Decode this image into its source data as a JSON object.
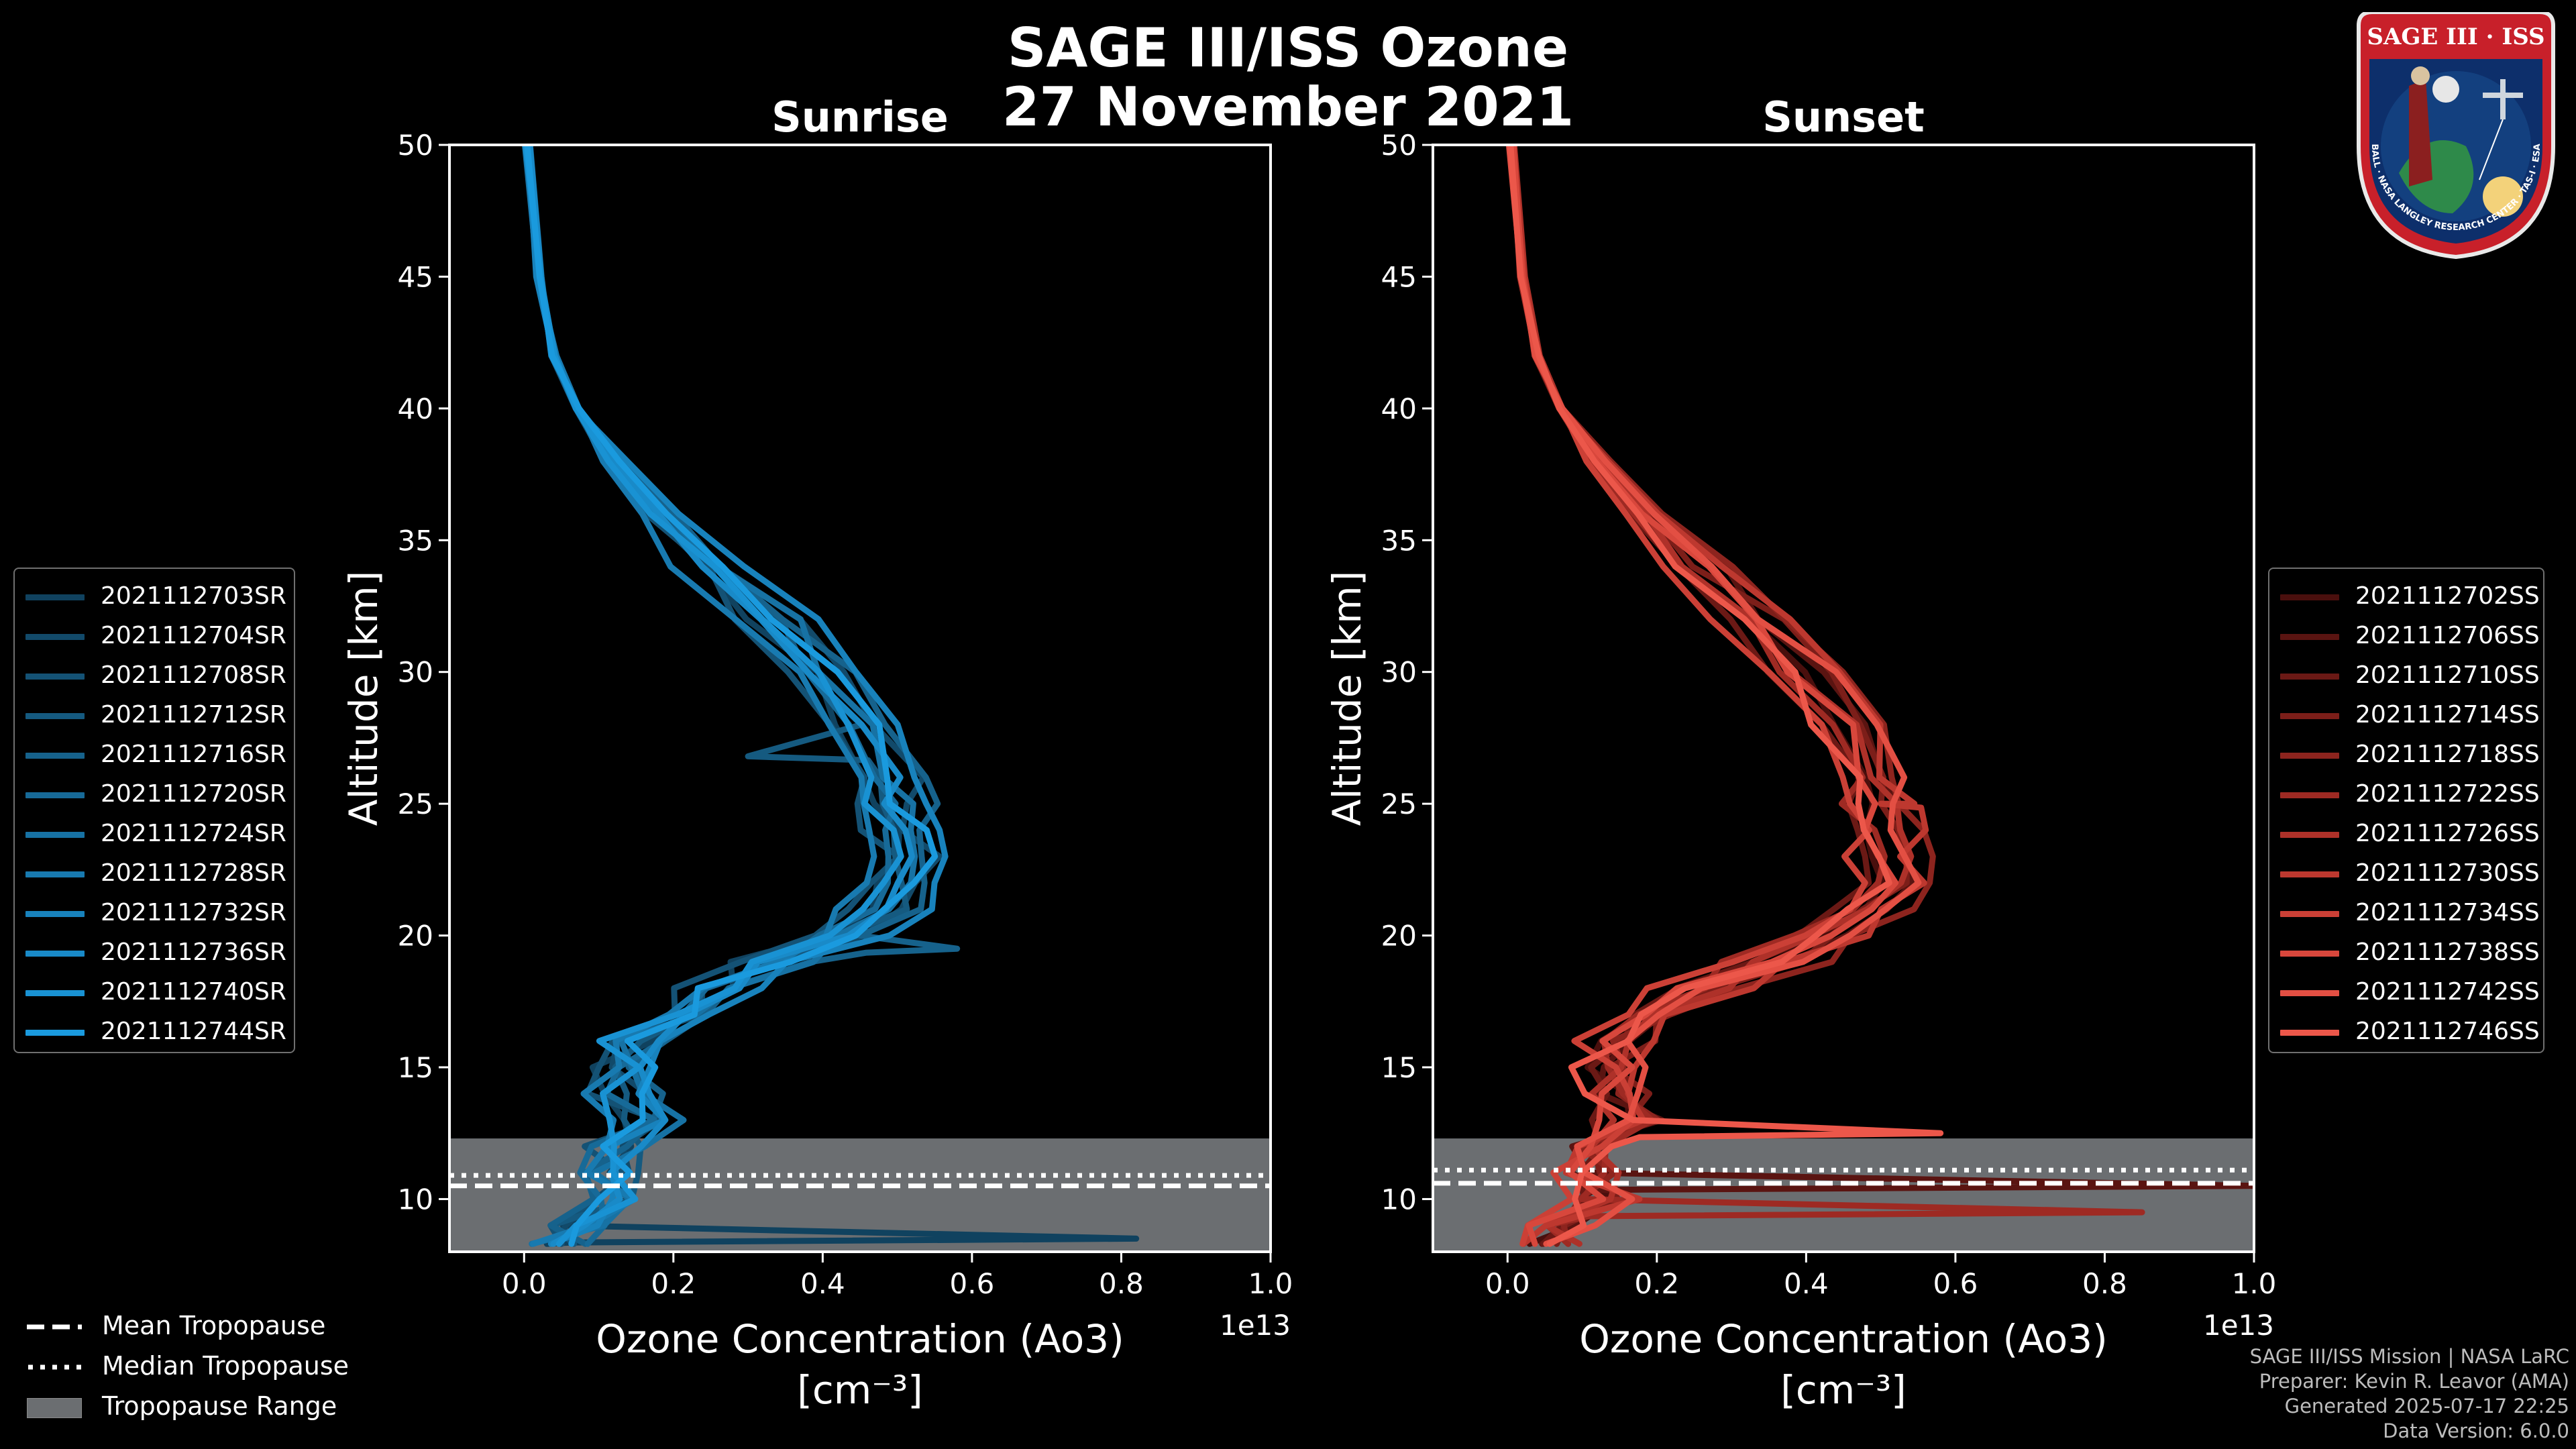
{
  "figure": {
    "title_line1": "SAGE III/ISS Ozone",
    "title_line2": "27 November 2021",
    "colors": {
      "background": "#000000",
      "sunrise": "#1a8fd6",
      "sunset": "#e8574a",
      "tropopause_range": "#6b6e71"
    }
  },
  "chart_data": [
    {
      "type": "line",
      "panel": "sunrise",
      "title": "Sunrise",
      "xlabel": "Ozone Concentration (Ao3)",
      "xlabel_units": "[cm⁻³]",
      "x_multiplier": "1e13",
      "ylabel": "Altitude [km]",
      "xlim": [
        -0.1,
        1.0
      ],
      "ylim": [
        8,
        50
      ],
      "xticks": [
        "0.0",
        "0.2",
        "0.4",
        "0.6",
        "0.8",
        "1.0"
      ],
      "xtick_values": [
        0.0,
        0.2,
        0.4,
        0.6,
        0.8,
        1.0
      ],
      "yticks": [
        "10",
        "15",
        "20",
        "25",
        "30",
        "35",
        "40",
        "45",
        "50"
      ],
      "ytick_values": [
        10,
        15,
        20,
        25,
        30,
        35,
        40,
        45,
        50
      ],
      "tropopause": {
        "mean": 10.5,
        "median": 10.9,
        "range": [
          8.0,
          12.3
        ]
      },
      "altitudes": [
        50,
        45,
        42,
        40,
        38,
        36,
        34,
        32,
        30,
        28,
        26,
        25,
        24,
        23,
        22,
        21,
        20,
        19,
        18,
        17,
        16,
        15,
        14,
        13,
        12,
        11,
        10,
        9,
        8.3
      ],
      "base_profile": [
        0.005,
        0.02,
        0.04,
        0.07,
        0.12,
        0.18,
        0.25,
        0.33,
        0.39,
        0.44,
        0.48,
        0.49,
        0.5,
        0.51,
        0.5,
        0.48,
        0.42,
        0.34,
        0.26,
        0.2,
        0.15,
        0.13,
        0.14,
        0.16,
        0.12,
        0.11,
        0.12,
        0.07,
        0.05
      ],
      "series": [
        {
          "name": "2021112703SR",
          "color": "#10425f",
          "offset": -0.02,
          "spike": [
            8.5,
            0.82
          ]
        },
        {
          "name": "2021112704SR",
          "color": "#124a6a",
          "offset": 0.03
        },
        {
          "name": "2021112708SR",
          "color": "#145275",
          "offset": -0.03
        },
        {
          "name": "2021112712SR",
          "color": "#155a80",
          "offset": 0.01,
          "spike": [
            26.8,
            0.3
          ]
        },
        {
          "name": "2021112716SR",
          "color": "#16628c",
          "offset": 0.04,
          "spike": [
            19.5,
            0.58
          ]
        },
        {
          "name": "2021112720SR",
          "color": "#176a98",
          "offset": -0.01
        },
        {
          "name": "2021112724SR",
          "color": "#1772a4",
          "offset": 0.02
        },
        {
          "name": "2021112728SR",
          "color": "#187ab0",
          "offset": -0.04
        },
        {
          "name": "2021112732SR",
          "color": "#1882bc",
          "offset": 0.05
        },
        {
          "name": "2021112736SR",
          "color": "#198ac8",
          "offset": 0.0
        },
        {
          "name": "2021112740SR",
          "color": "#1992d3",
          "offset": -0.02
        },
        {
          "name": "2021112744SR",
          "color": "#1a9ade",
          "offset": 0.02
        }
      ]
    },
    {
      "type": "line",
      "panel": "sunset",
      "title": "Sunset",
      "xlabel": "Ozone Concentration (Ao3)",
      "xlabel_units": "[cm⁻³]",
      "x_multiplier": "1e13",
      "ylabel": "Altitude [km]",
      "xlim": [
        -0.1,
        1.0
      ],
      "ylim": [
        8,
        50
      ],
      "xticks": [
        "0.0",
        "0.2",
        "0.4",
        "0.6",
        "0.8",
        "1.0"
      ],
      "xtick_values": [
        0.0,
        0.2,
        0.4,
        0.6,
        0.8,
        1.0
      ],
      "yticks": [
        "10",
        "15",
        "20",
        "25",
        "30",
        "35",
        "40",
        "45",
        "50"
      ],
      "ytick_values": [
        10,
        15,
        20,
        25,
        30,
        35,
        40,
        45,
        50
      ],
      "tropopause": {
        "mean": 10.6,
        "median": 11.1,
        "range": [
          8.0,
          12.3
        ]
      },
      "altitudes": [
        50,
        45,
        42,
        40,
        38,
        36,
        34,
        32,
        30,
        28,
        26,
        25,
        24,
        23,
        22,
        21,
        20,
        19,
        18,
        17,
        16,
        15,
        14,
        13,
        12,
        11,
        10,
        9,
        8.3
      ],
      "base_profile": [
        0.005,
        0.02,
        0.04,
        0.07,
        0.12,
        0.18,
        0.25,
        0.33,
        0.39,
        0.44,
        0.48,
        0.49,
        0.5,
        0.51,
        0.5,
        0.48,
        0.42,
        0.34,
        0.26,
        0.2,
        0.15,
        0.13,
        0.14,
        0.16,
        0.12,
        0.11,
        0.12,
        0.07,
        0.05
      ],
      "series": [
        {
          "name": "2021112702SS",
          "color": "#4a0f0d",
          "offset": -0.01
        },
        {
          "name": "2021112706SS",
          "color": "#5a1411",
          "offset": 0.03,
          "spike": [
            10.5,
            1.0
          ]
        },
        {
          "name": "2021112710SS",
          "color": "#6b1915",
          "offset": -0.03
        },
        {
          "name": "2021112714SS",
          "color": "#7c1e19",
          "offset": 0.02
        },
        {
          "name": "2021112718SS",
          "color": "#8d241e",
          "offset": 0.05
        },
        {
          "name": "2021112722SS",
          "color": "#9e2a23",
          "offset": -0.02,
          "spike": [
            9.5,
            0.85
          ]
        },
        {
          "name": "2021112726SS",
          "color": "#ae3129",
          "offset": 0.01
        },
        {
          "name": "2021112730SS",
          "color": "#bd382f",
          "offset": 0.04,
          "spike": [
            25.0,
            0.5
          ]
        },
        {
          "name": "2021112734SS",
          "color": "#cb4036",
          "offset": -0.04
        },
        {
          "name": "2021112738SS",
          "color": "#d8473c",
          "offset": 0.0
        },
        {
          "name": "2021112742SS",
          "color": "#e34f43",
          "offset": 0.03
        },
        {
          "name": "2021112746SS",
          "color": "#ec574a",
          "offset": -0.01,
          "spike": [
            12.5,
            0.58
          ]
        }
      ]
    }
  ],
  "bottom_legend": [
    {
      "label": "Mean Tropopause",
      "style": "dashed"
    },
    {
      "label": "Median Tropopause",
      "style": "dotted"
    },
    {
      "label": "Tropopause Range",
      "style": "patch"
    }
  ],
  "credits": [
    "SAGE III/ISS Mission | NASA LaRC",
    "Preparer: Kevin R. Leavor (AMA)",
    "Generated 2025-07-17 22:25",
    "Data Version: 6.0.0"
  ],
  "badge": {
    "title": "SAGE III · ISS",
    "ring_text": "BALL · NASA LANGLEY RESEARCH CENTER · TAS-I · ESA"
  }
}
